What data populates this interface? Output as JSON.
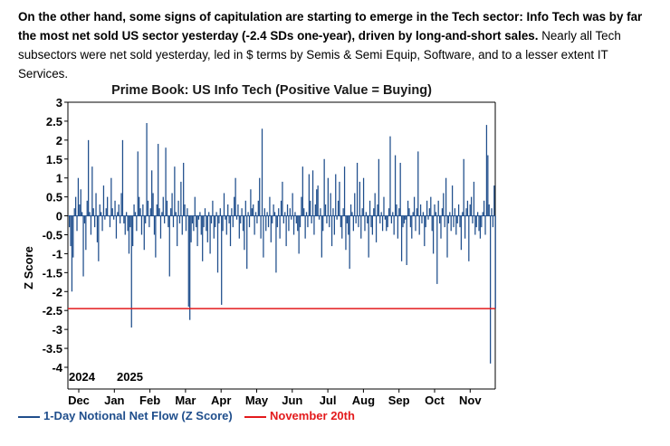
{
  "intro": {
    "bold": "On the other hand, some signs of capitulation are starting to emerge in the Tech sector: Info Tech was by far the most net sold US sector yesterday (-2.4 SDs one-year), driven by long-and-short sales.",
    "normal": " Nearly all Tech subsectors were net sold yesterday, led in $ terms by Semis & Semi Equip, Software, and to a lesser extent IT Services."
  },
  "chart_data": {
    "type": "bar",
    "title": "Prime Book: US Info Tech (Positive Value = Buying)",
    "ylabel": "Z Score",
    "xlabel": "",
    "ylim": [
      -4,
      3
    ],
    "yticks": [
      "3",
      "2.5",
      "2",
      "1.5",
      "1",
      "0.5",
      "0",
      "-0.5",
      "-1",
      "-1.5",
      "-2",
      "-2.5",
      "-3",
      "-3.5",
      "-4"
    ],
    "year_labels": [
      "2024",
      "2025"
    ],
    "months": [
      "Dec",
      "Jan",
      "Feb",
      "Mar",
      "Apr",
      "May",
      "Jun",
      "Jul",
      "Aug",
      "Sep",
      "Oct",
      "Nov"
    ],
    "reference_line": {
      "label": "November 20th",
      "value": -2.45,
      "color": "#e31a1c"
    },
    "series": [
      {
        "name": "1-Day Notional Net Flow (Z Score)",
        "color": "#1f4e8c",
        "values": [
          -0.3,
          -0.8,
          -2.0,
          -1.1,
          0.2,
          0.5,
          -0.4,
          1.0,
          0.3,
          0.7,
          0.1,
          -1.6,
          -0.2,
          -0.9,
          0.4,
          2.0,
          0.1,
          -0.5,
          1.3,
          0.2,
          -0.3,
          0.6,
          -0.7,
          -1.2,
          0.3,
          0.1,
          -0.4,
          0.8,
          -0.1,
          0.2,
          0.5,
          0.0,
          -0.3,
          1.0,
          0.2,
          -0.1,
          0.4,
          -0.6,
          0.1,
          0.3,
          -0.2,
          0.6,
          2.0,
          -0.2,
          -0.5,
          0.1,
          -0.4,
          -1.0,
          -0.3,
          -2.95,
          -0.8,
          0.3,
          0.1,
          -0.4,
          1.7,
          0.5,
          0.2,
          -0.5,
          0.3,
          -0.9,
          -0.2,
          2.45,
          0.4,
          -0.3,
          0.2,
          1.2,
          0.6,
          -0.5,
          -1.1,
          0.3,
          1.9,
          0.2,
          -0.6,
          0.1,
          0.5,
          -0.2,
          1.8,
          0.4,
          -0.3,
          -1.6,
          0.2,
          0.6,
          -0.3,
          1.3,
          0.1,
          -0.8,
          0.4,
          -0.2,
          0.9,
          -0.5,
          1.4,
          0.3,
          -0.4,
          0.2,
          -2.4,
          -2.75,
          -0.7,
          -0.2,
          -0.4,
          0.5,
          -0.3,
          -0.8,
          -0.1,
          0.1,
          -0.5,
          -1.2,
          -0.3,
          0.2,
          -0.4,
          -0.7,
          0.1,
          -1.0,
          -0.2,
          0.4,
          -0.6,
          -0.3,
          0.1,
          -1.5,
          -0.2,
          0.2,
          -2.35,
          -0.4,
          0.6,
          -0.1,
          -0.5,
          0.3,
          -0.2,
          -0.8,
          0.2,
          -0.3,
          0.5,
          1.0,
          -0.1,
          0.3,
          -0.6,
          -0.2,
          0.2,
          -0.4,
          -0.9,
          0.4,
          -1.4,
          0.1,
          -0.3,
          0.7,
          0.2,
          0.3,
          -0.5,
          0.1,
          -0.2,
          0.4,
          1.0,
          -0.6,
          2.3,
          -1.1,
          0.2,
          -0.4,
          0.1,
          -0.3,
          0.5,
          -0.7,
          -0.2,
          0.3,
          0.1,
          -1.5,
          -0.3,
          0.2,
          -0.6,
          0.4,
          0.9,
          -0.2,
          0.1,
          -0.8,
          0.3,
          -0.4,
          0.2,
          -0.1,
          0.6,
          -0.5,
          0.1,
          -0.2,
          -0.4,
          -1.0,
          -0.3,
          0.5,
          1.3,
          0.2,
          -0.6,
          0.1,
          -0.3,
          1.1,
          0.4,
          -0.2,
          1.2,
          -0.5,
          0.3,
          0.7,
          0.8,
          -0.1,
          0.2,
          -1.1,
          -0.4,
          1.5,
          0.3,
          -0.2,
          1.0,
          -0.3,
          0.6,
          -0.8,
          0.2,
          -0.5,
          1.1,
          -0.1,
          0.4,
          0.9,
          -0.3,
          -0.6,
          0.2,
          1.3,
          -0.9,
          -0.2,
          -0.5,
          -1.4,
          0.3,
          0.1,
          -0.4,
          0.6,
          -0.2,
          1.4,
          -0.3,
          0.9,
          -0.6,
          0.2,
          1.0,
          -0.4,
          0.1,
          -0.2,
          -1.1,
          0.4,
          -0.3,
          -0.5,
          0.2,
          0.6,
          -0.7,
          0.3,
          1.5,
          -0.2,
          0.1,
          -0.4,
          0.5,
          -0.1,
          -0.4,
          -0.3,
          0.2,
          2.1,
          -0.2,
          0.1,
          -0.5,
          1.6,
          0.3,
          -0.6,
          0.2,
          1.4,
          -1.2,
          -0.3,
          -0.2,
          -0.1,
          -1.3,
          0.4,
          0.2,
          -0.3,
          -0.6,
          0.1,
          0.5,
          -0.4,
          0.2,
          1.7,
          -0.5,
          0.3,
          -0.2,
          0.1,
          -0.8,
          -0.3,
          0.4,
          -0.1,
          0.2,
          0.5,
          -0.4,
          -1.0,
          0.3,
          0.1,
          -1.8,
          0.4,
          -0.2,
          -0.6,
          0.2,
          0.6,
          -0.3,
          1.0,
          -1.1,
          -0.2,
          0.1,
          -0.4,
          0.8,
          -0.3,
          0.2,
          -0.5,
          -0.2,
          0.3,
          -0.3,
          -0.9,
          0.1,
          1.5,
          -0.6,
          0.2,
          0.4,
          -1.2,
          0.3,
          0.5,
          -0.2,
          0.9,
          -0.5,
          -0.3,
          0.1,
          -0.4,
          -0.6,
          -0.3,
          0.1,
          0.4,
          -0.5,
          2.4,
          1.6,
          0.3,
          -3.9,
          0.2,
          -0.3,
          0.8,
          -2.45
        ]
      }
    ],
    "legend": [
      "1-Day Notional Net Flow (Z Score)",
      "November 20th"
    ],
    "legend_position": "bottom-left"
  }
}
